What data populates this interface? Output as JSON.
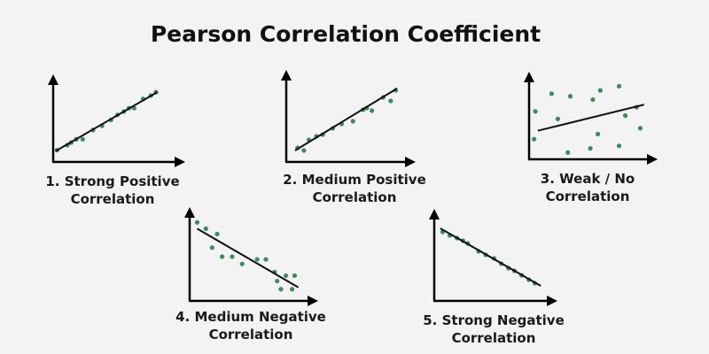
{
  "title": "Pearson Correlation Coefficient",
  "colors": {
    "point": "#3d8b5c",
    "line": "#111111",
    "axis": "#000000",
    "background": "#f3f3f3"
  },
  "chart_data": [
    {
      "type": "scatter",
      "label_line1": "1. Strong Positive",
      "label_line2": "Correlation",
      "xlim": [
        0,
        10
      ],
      "ylim": [
        0,
        10
      ],
      "points": [
        [
          0.3,
          1.4
        ],
        [
          1.1,
          2.0
        ],
        [
          1.4,
          2.3
        ],
        [
          1.8,
          2.7
        ],
        [
          2.3,
          2.7
        ],
        [
          3.1,
          3.8
        ],
        [
          3.8,
          4.3
        ],
        [
          4.5,
          5.0
        ],
        [
          5.0,
          5.6
        ],
        [
          5.5,
          6.0
        ],
        [
          5.9,
          6.4
        ],
        [
          6.3,
          6.4
        ],
        [
          7.0,
          7.5
        ],
        [
          7.6,
          7.9
        ],
        [
          8.0,
          8.3
        ]
      ],
      "trend": [
        [
          0.2,
          1.3
        ],
        [
          8.1,
          8.3
        ]
      ]
    },
    {
      "type": "scatter",
      "label_line1": "2. Medium Positive",
      "label_line2": "Correlation",
      "xlim": [
        0,
        10
      ],
      "ylim": [
        0,
        10
      ],
      "points": [
        [
          0.9,
          1.6
        ],
        [
          1.4,
          1.3
        ],
        [
          1.8,
          2.5
        ],
        [
          2.4,
          2.9
        ],
        [
          2.9,
          3.1
        ],
        [
          3.7,
          3.8
        ],
        [
          4.4,
          4.3
        ],
        [
          5.3,
          4.6
        ],
        [
          6.1,
          5.9
        ],
        [
          6.4,
          6.1
        ],
        [
          6.8,
          5.8
        ],
        [
          7.7,
          7.3
        ],
        [
          8.3,
          6.9
        ],
        [
          8.7,
          8.1
        ]
      ],
      "trend": [
        [
          0.7,
          1.3
        ],
        [
          8.8,
          8.3
        ]
      ]
    },
    {
      "type": "scatter",
      "label_line1": "3. Weak / No",
      "label_line2": "Correlation",
      "xlim": [
        0,
        10
      ],
      "ylim": [
        0,
        10
      ],
      "points": [
        [
          0.5,
          5.7
        ],
        [
          1.8,
          7.8
        ],
        [
          3.3,
          7.5
        ],
        [
          5.1,
          7.1
        ],
        [
          5.7,
          8.2
        ],
        [
          7.2,
          8.7
        ],
        [
          2.3,
          4.8
        ],
        [
          0.4,
          2.4
        ],
        [
          3.1,
          0.8
        ],
        [
          4.9,
          1.3
        ],
        [
          5.5,
          3.0
        ],
        [
          7.2,
          1.6
        ],
        [
          7.7,
          5.2
        ],
        [
          8.6,
          6.2
        ],
        [
          8.9,
          3.7
        ]
      ],
      "trend": [
        [
          0.7,
          3.4
        ],
        [
          9.2,
          6.5
        ]
      ]
    },
    {
      "type": "scatter",
      "label_line1": "4. Medium Negative",
      "label_line2": "Correlation",
      "xlim": [
        0,
        10
      ],
      "ylim": [
        0,
        10
      ],
      "points": [
        [
          0.6,
          8.7
        ],
        [
          1.3,
          8.0
        ],
        [
          2.2,
          7.4
        ],
        [
          1.8,
          5.9
        ],
        [
          2.6,
          4.9
        ],
        [
          3.4,
          4.9
        ],
        [
          4.2,
          4.1
        ],
        [
          5.4,
          4.6
        ],
        [
          6.1,
          4.6
        ],
        [
          6.8,
          3.2
        ],
        [
          7.0,
          2.2
        ],
        [
          7.7,
          2.8
        ],
        [
          7.3,
          1.3
        ],
        [
          8.2,
          1.3
        ],
        [
          8.4,
          2.8
        ]
      ],
      "trend": [
        [
          0.6,
          8.0
        ],
        [
          8.7,
          1.5
        ]
      ]
    },
    {
      "type": "scatter",
      "label_line1": "5. Strong Negative",
      "label_line2": "Correlation",
      "xlim": [
        0,
        10
      ],
      "ylim": [
        0,
        10
      ],
      "points": [
        [
          0.7,
          7.8
        ],
        [
          1.3,
          7.4
        ],
        [
          1.9,
          7.1
        ],
        [
          2.4,
          6.8
        ],
        [
          2.8,
          6.5
        ],
        [
          3.7,
          5.6
        ],
        [
          4.3,
          5.2
        ],
        [
          5.0,
          4.8
        ],
        [
          5.6,
          4.2
        ],
        [
          6.2,
          3.7
        ],
        [
          6.7,
          3.4
        ],
        [
          7.3,
          2.9
        ],
        [
          7.9,
          2.4
        ],
        [
          8.4,
          2.0
        ]
      ],
      "trend": [
        [
          0.5,
          8.2
        ],
        [
          8.9,
          1.7
        ]
      ]
    }
  ]
}
